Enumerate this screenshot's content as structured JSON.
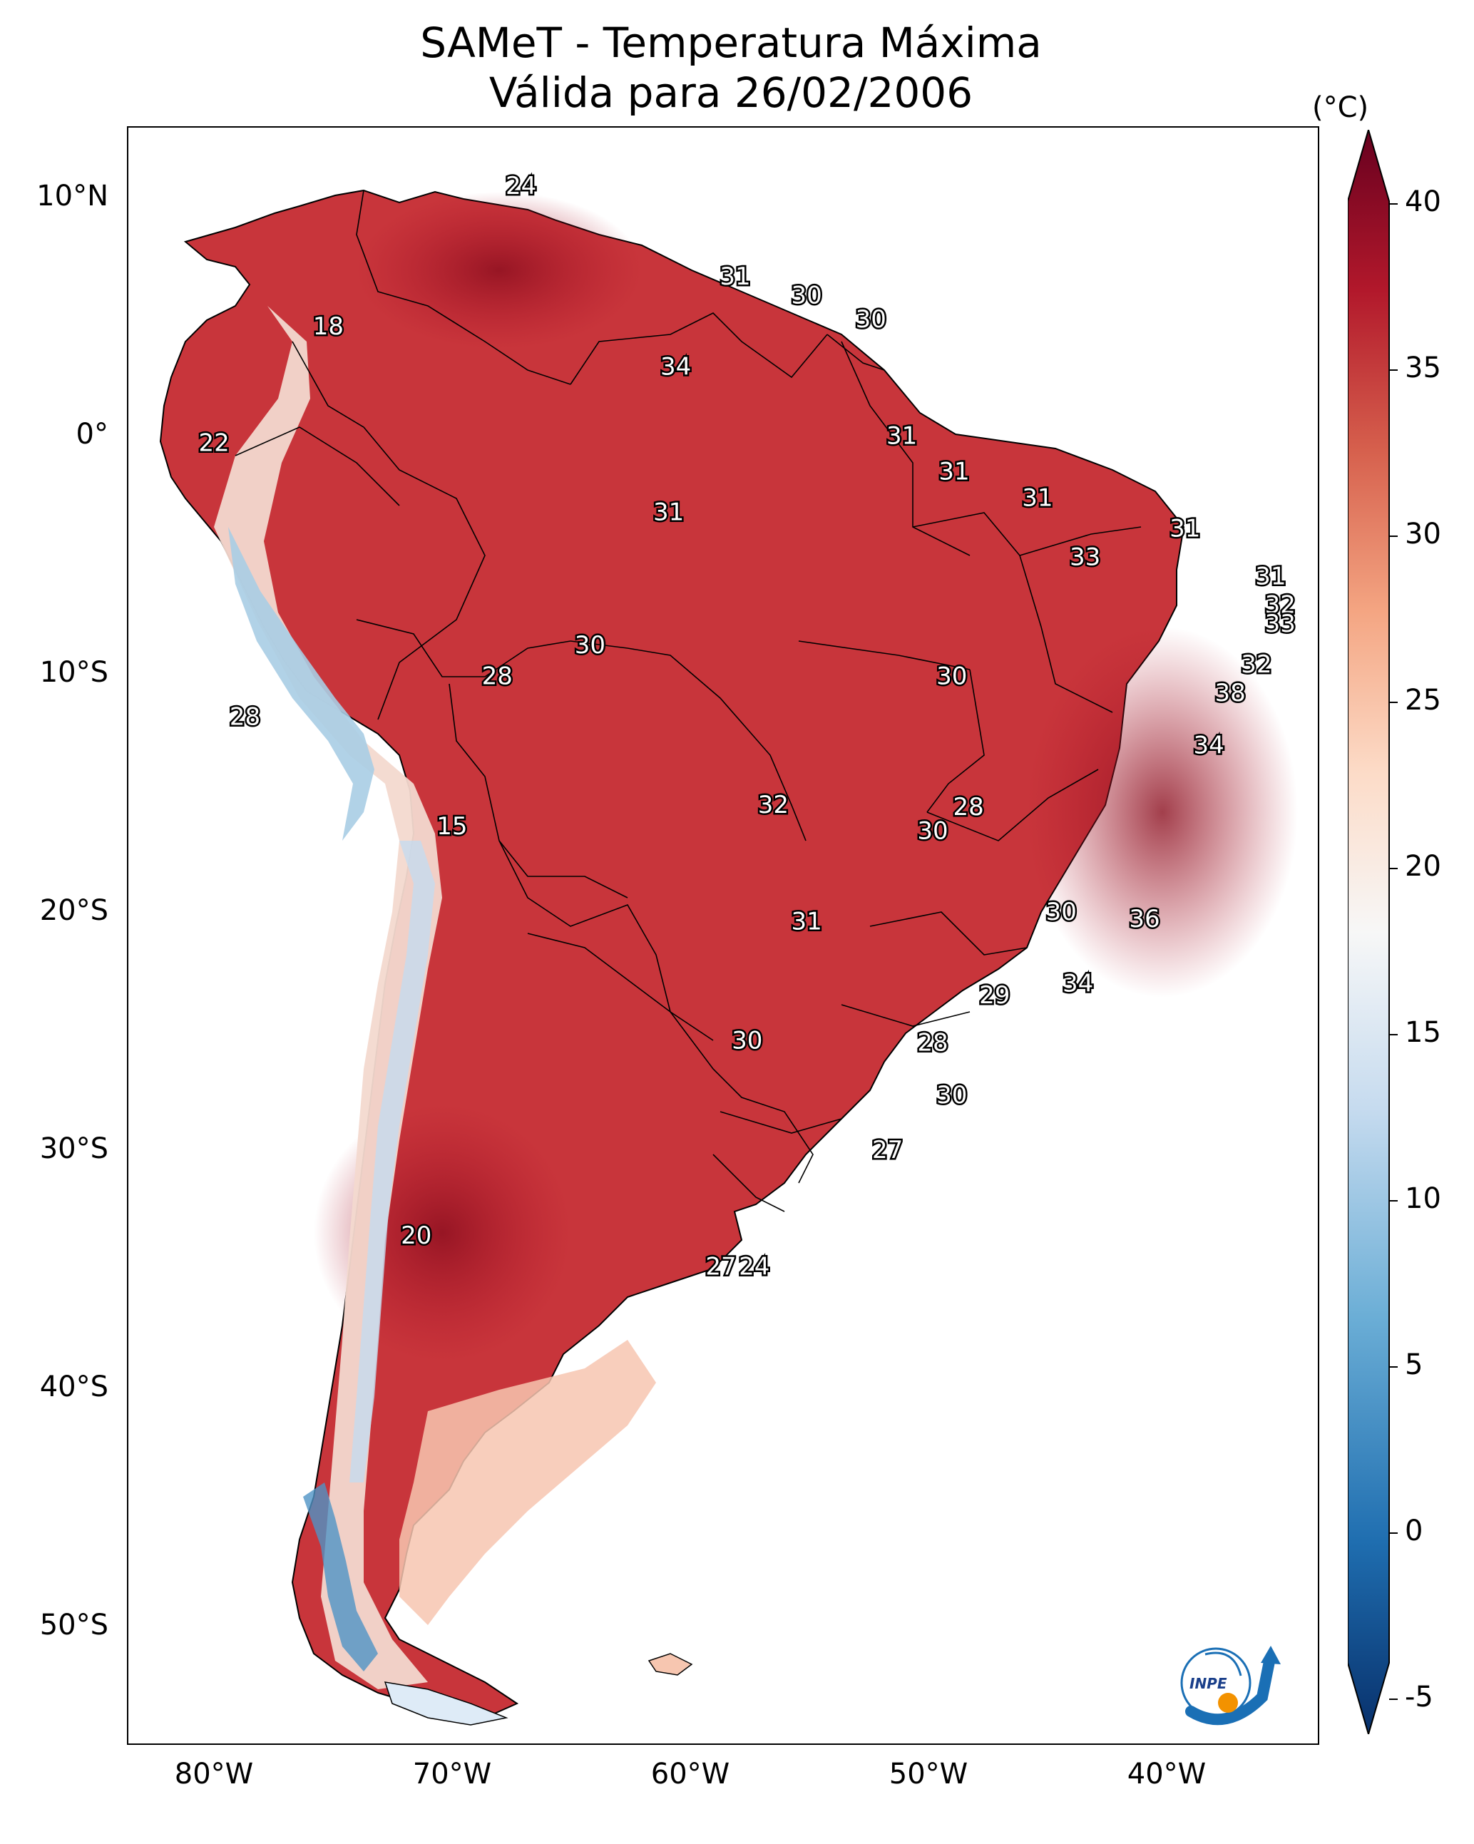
{
  "title": {
    "line1": "SAMeT - Temperatura Máxima",
    "line2": "Válida para 26/02/2006"
  },
  "map": {
    "lat_labels": [
      "10°N",
      "0°",
      "10°S",
      "20°S",
      "30°S",
      "40°S",
      "50°S"
    ],
    "lon_labels": [
      "80°W",
      "70°W",
      "60°W",
      "50°W",
      "40°W"
    ],
    "contour_labels": [
      {
        "value": "24",
        "lon": -66.5,
        "lat": 10.5
      },
      {
        "value": "31",
        "lon": -57.5,
        "lat": 6.7
      },
      {
        "value": "30",
        "lon": -54.5,
        "lat": 5.9
      },
      {
        "value": "30",
        "lon": -51.8,
        "lat": 4.9
      },
      {
        "value": "18",
        "lon": -74.6,
        "lat": 4.6
      },
      {
        "value": "34",
        "lon": -60.0,
        "lat": 2.9
      },
      {
        "value": "31",
        "lon": -50.5,
        "lat": 0.0
      },
      {
        "value": "22",
        "lon": -79.4,
        "lat": -0.3
      },
      {
        "value": "31",
        "lon": -48.3,
        "lat": -1.5
      },
      {
        "value": "31",
        "lon": -44.8,
        "lat": -2.6
      },
      {
        "value": "31",
        "lon": -60.3,
        "lat": -3.2
      },
      {
        "value": "31",
        "lon": -38.6,
        "lat": -3.9
      },
      {
        "value": "33",
        "lon": -42.8,
        "lat": -5.1
      },
      {
        "value": "31",
        "lon": -35.0,
        "lat": -5.9
      },
      {
        "value": "32",
        "lon": -34.6,
        "lat": -7.1
      },
      {
        "value": "33",
        "lon": -34.6,
        "lat": -7.9
      },
      {
        "value": "30",
        "lon": -63.6,
        "lat": -8.8
      },
      {
        "value": "32",
        "lon": -35.6,
        "lat": -9.6
      },
      {
        "value": "28",
        "lon": -67.5,
        "lat": -10.1
      },
      {
        "value": "30",
        "lon": -48.4,
        "lat": -10.1
      },
      {
        "value": "38",
        "lon": -36.7,
        "lat": -10.8
      },
      {
        "value": "28",
        "lon": -78.1,
        "lat": -11.8
      },
      {
        "value": "34",
        "lon": -37.6,
        "lat": -13.0
      },
      {
        "value": "32",
        "lon": -55.9,
        "lat": -15.5
      },
      {
        "value": "28",
        "lon": -47.7,
        "lat": -15.6
      },
      {
        "value": "15",
        "lon": -69.4,
        "lat": -16.4
      },
      {
        "value": "30",
        "lon": -49.2,
        "lat": -16.6
      },
      {
        "value": "30",
        "lon": -43.8,
        "lat": -20.0
      },
      {
        "value": "36",
        "lon": -40.3,
        "lat": -20.3
      },
      {
        "value": "31",
        "lon": -54.5,
        "lat": -20.4
      },
      {
        "value": "34",
        "lon": -43.1,
        "lat": -23.0
      },
      {
        "value": "29",
        "lon": -46.6,
        "lat": -23.5
      },
      {
        "value": "30",
        "lon": -57.0,
        "lat": -25.4
      },
      {
        "value": "28",
        "lon": -49.2,
        "lat": -25.5
      },
      {
        "value": "30",
        "lon": -48.4,
        "lat": -27.7
      },
      {
        "value": "27",
        "lon": -51.1,
        "lat": -30.0
      },
      {
        "value": "20",
        "lon": -70.9,
        "lat": -33.6
      },
      {
        "value": "27",
        "lon": -58.1,
        "lat": -34.9
      },
      {
        "value": "24",
        "lon": -56.7,
        "lat": -34.9
      }
    ]
  },
  "colorbar": {
    "unit": "(°C)",
    "ticks": [
      "40",
      "35",
      "30",
      "25",
      "20",
      "15",
      "10",
      "5",
      "0",
      "-5"
    ],
    "min": -7,
    "max": 42,
    "colors": [
      "#08306b",
      "#1f6eb0",
      "#6baed6",
      "#c6dbef",
      "#f7f7f7",
      "#fcdbc7",
      "#f4a582",
      "#d6604d",
      "#b2182b",
      "#67001f"
    ]
  },
  "logo": {
    "text": "INPE"
  }
}
